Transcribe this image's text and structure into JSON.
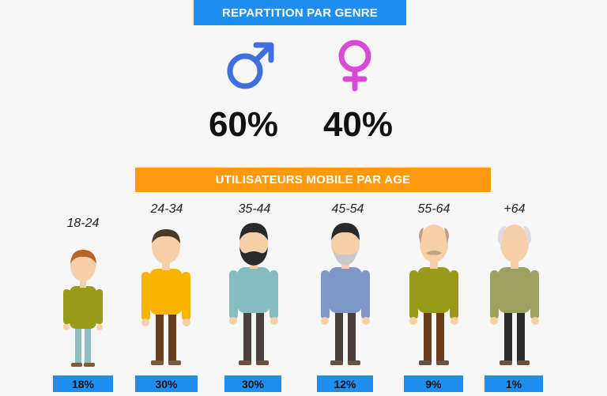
{
  "gender": {
    "title": "REPARTITION PAR GENRE",
    "male": {
      "icon": "male-symbol-icon",
      "percent": "60%",
      "value": 60,
      "color": "#3f6fdb"
    },
    "female": {
      "icon": "female-symbol-icon",
      "percent": "40%",
      "value": 40,
      "color": "#d94bd6"
    }
  },
  "age": {
    "title": "UTILISATEURS MOBILE PAR AGE",
    "groups": [
      {
        "label": "18-24",
        "percent": "18%",
        "value": 18,
        "shirt": "#9a9a1a",
        "pants": "#8fbdbf",
        "hair": "#b8652a"
      },
      {
        "label": "24-34",
        "percent": "30%",
        "value": 30,
        "shirt": "#f6b400",
        "pants": "#6a3c1a",
        "hair": "#4a3a2a"
      },
      {
        "label": "35-44",
        "percent": "30%",
        "value": 30,
        "shirt": "#85bcbf",
        "pants": "#4a4040",
        "hair": "#2a2a2a"
      },
      {
        "label": "45-54",
        "percent": "12%",
        "value": 12,
        "shirt": "#7f97c8",
        "pants": "#4a3f3a",
        "hair": "#2a2a2a"
      },
      {
        "label": "55-64",
        "percent": "9%",
        "value": 9,
        "shirt": "#9a9a1a",
        "pants": "#6a3c1a",
        "hair": "#bfa080"
      },
      {
        "label": "+64",
        "percent": "1%",
        "value": 1,
        "shirt": "#9ea060",
        "pants": "#2a2a2a",
        "hair": "#dcdcdc"
      }
    ]
  }
}
